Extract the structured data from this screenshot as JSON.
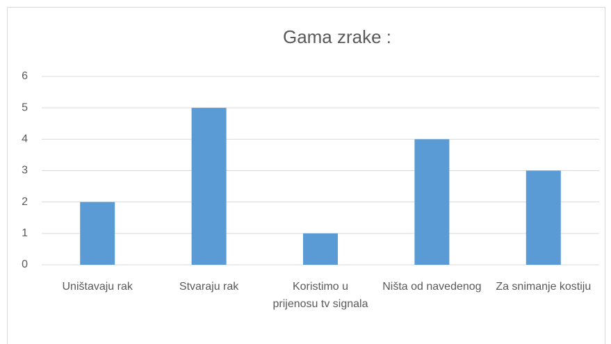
{
  "chart_data": {
    "type": "bar",
    "title": "Gama zrake :",
    "categories": [
      "Uništavaju rak",
      "Stvaraju rak",
      "Koristimo u prijenosu tv signala",
      "Ništa od navedenog",
      "Za snimanje kostiju"
    ],
    "values": [
      2,
      5,
      1,
      4,
      3
    ],
    "color": "#5b9bd5",
    "ylim": [
      0,
      6
    ],
    "yticks": [
      0,
      1,
      2,
      3,
      4,
      5,
      6
    ],
    "grid": true
  }
}
